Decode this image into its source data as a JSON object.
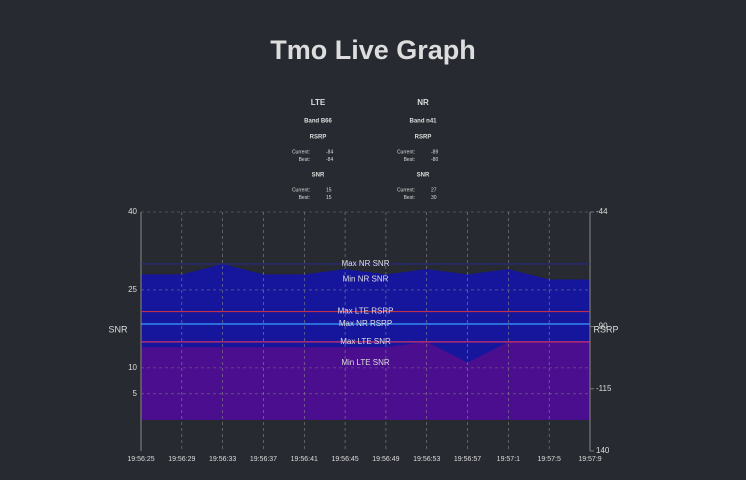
{
  "page_title": "Tmo Live Graph",
  "stats": [
    {
      "title": "LTE",
      "band": "Band B66",
      "sections": [
        {
          "label": "RSRP",
          "rows": [
            {
              "label": "Current:",
              "value": -84
            },
            {
              "label": "Best:",
              "value": -84
            }
          ]
        },
        {
          "label": "SNR",
          "rows": [
            {
              "label": "Current:",
              "value": 15
            },
            {
              "label": "Best:",
              "value": 15
            }
          ]
        }
      ]
    },
    {
      "title": "NR",
      "band": "Band n41",
      "sections": [
        {
          "label": "RSRP",
          "rows": [
            {
              "label": "Current:",
              "value": -89
            },
            {
              "label": "Best:",
              "value": -80
            }
          ]
        },
        {
          "label": "SNR",
          "rows": [
            {
              "label": "Current:",
              "value": 27
            },
            {
              "label": "Best:",
              "value": 30
            }
          ]
        }
      ]
    }
  ],
  "chart_data": {
    "type": "area",
    "y_label": "SNR",
    "y2_label": "RSRP",
    "categories": [
      "19:56:25",
      "19:56:29",
      "19:56:33",
      "19:56:37",
      "19:56:41",
      "19:56:45",
      "19:56:49",
      "19:56:53",
      "19:56:57",
      "19:57:1",
      "19:57:5",
      "19:57:9"
    ],
    "series": [
      {
        "name": "NR SNR",
        "color": "#16169c",
        "values": [
          28,
          28,
          30,
          28,
          28,
          29,
          28,
          29,
          28,
          29,
          27,
          27
        ]
      },
      {
        "name": "LTE SNR",
        "color": "#4a0e8e",
        "values": [
          14,
          14,
          14,
          14,
          14,
          14,
          14,
          15,
          11,
          15,
          15,
          15
        ]
      }
    ],
    "annotations": [
      {
        "name": "Max NR SNR",
        "value": 30,
        "color": "#2a2a8a"
      },
      {
        "name": "Min NR SNR",
        "value": 27,
        "color": "none"
      },
      {
        "name": "Max LTE RSRP",
        "value": -84,
        "axis": "y2",
        "color": "#c0304a"
      },
      {
        "name": "Max NR RSRP",
        "value": -89,
        "axis": "y2",
        "color": "#3aa0ff"
      },
      {
        "name": "Max LTE SNR",
        "value": 15,
        "color": "#d0306a"
      },
      {
        "name": "Min LTE SNR",
        "value": 11,
        "color": "none"
      }
    ],
    "ylim": [
      -6,
      40
    ],
    "yticks": [
      40,
      25,
      10,
      5
    ],
    "y2lim": [
      -140,
      -44
    ],
    "y2ticks": [
      -44,
      -90,
      -115,
      {
        "value": -140,
        "label": "140"
      }
    ],
    "grid": true
  }
}
